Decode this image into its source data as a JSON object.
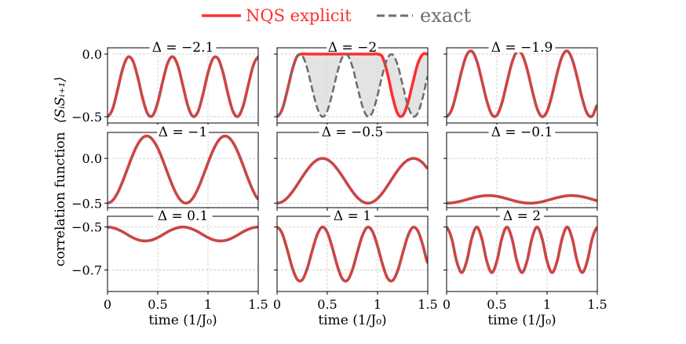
{
  "legend": {
    "nqs_label": "NQS explicit",
    "exact_label": "exact",
    "placement": "top-center"
  },
  "colors": {
    "nqs": "#ff2e2e",
    "exact": "#6e6e6e",
    "fill_between": "#d9d9d9",
    "grid": "#c8c8c8"
  },
  "chart_data": {
    "type": "line",
    "layout": "3x3 grid",
    "grid": true,
    "xlabel": "time (1/J₀)",
    "ylabel": "correlation function",
    "ylabel_expr": "⟨SᵢSᵢ₊₁⟩",
    "xlim": [
      0,
      1.5
    ],
    "xticks": [
      "0",
      "0.5",
      "1",
      "1.5"
    ],
    "rows": [
      {
        "ylim": [
          -0.55,
          0.05
        ],
        "yticks": [
          0.0,
          -0.5
        ],
        "ytick_labels": [
          "0.0",
          "−0.5"
        ]
      },
      {
        "ylim": [
          -0.55,
          0.29
        ],
        "yticks": [
          0.0,
          -0.5
        ],
        "ytick_labels": [
          "0.0",
          "−0.5"
        ]
      },
      {
        "ylim": [
          -0.8,
          -0.45
        ],
        "yticks": [
          -0.5,
          -0.7
        ],
        "ytick_labels": [
          "−0.5",
          "−0.7"
        ]
      }
    ],
    "x": [
      0,
      0.05,
      0.1,
      0.15,
      0.2,
      0.25,
      0.3,
      0.35,
      0.4,
      0.45,
      0.5,
      0.55,
      0.6,
      0.65,
      0.7,
      0.75,
      0.8,
      0.85,
      0.9,
      0.95,
      1.0,
      1.05,
      1.1,
      1.15,
      1.2,
      1.25,
      1.3,
      1.35,
      1.4,
      1.45,
      1.5
    ],
    "panels": [
      {
        "title": "Δ = −2.1",
        "row": 0,
        "col": 0,
        "exact": [
          -0.5,
          -0.439,
          -0.286,
          -0.12,
          -0.026,
          -0.051,
          -0.182,
          -0.354,
          -0.477,
          -0.49,
          -0.385,
          -0.216,
          -0.07,
          -0.021,
          -0.093,
          -0.251,
          -0.414,
          -0.497,
          -0.46,
          -0.321,
          -0.15,
          -0.036,
          -0.036,
          -0.15,
          -0.321,
          -0.46,
          -0.497,
          -0.414,
          -0.251,
          -0.093,
          -0.021
        ],
        "nqs": [
          -0.5,
          -0.439,
          -0.286,
          -0.12,
          -0.026,
          -0.051,
          -0.182,
          -0.354,
          -0.477,
          -0.49,
          -0.385,
          -0.216,
          -0.07,
          -0.021,
          -0.093,
          -0.251,
          -0.414,
          -0.497,
          -0.46,
          -0.321,
          -0.15,
          -0.036,
          -0.036,
          -0.15,
          -0.321,
          -0.46,
          -0.497,
          -0.414,
          -0.251,
          -0.093,
          -0.021
        ]
      },
      {
        "title": "Δ = −2",
        "row": 0,
        "col": 1,
        "fill_between": true,
        "exact": [
          -0.5,
          -0.443,
          -0.297,
          -0.13,
          -0.018,
          -0.012,
          -0.115,
          -0.28,
          -0.429,
          -0.5,
          -0.453,
          -0.314,
          -0.146,
          -0.025,
          -0.007,
          -0.101,
          -0.263,
          -0.417,
          -0.498,
          -0.463,
          -0.33,
          -0.161,
          -0.033,
          -0.004,
          -0.087,
          -0.246,
          -0.406,
          -0.495,
          -0.471,
          -0.347,
          -0.178
        ],
        "nqs": [
          -0.5,
          -0.443,
          -0.297,
          -0.13,
          -0.018,
          0,
          0,
          0,
          0,
          0,
          0,
          0,
          0,
          0,
          0,
          0,
          0,
          0,
          0,
          0,
          0,
          -0.025,
          -0.159,
          -0.341,
          -0.475,
          -0.491,
          -0.394,
          -0.233,
          -0.079,
          -0.002,
          0
        ]
      },
      {
        "title": "Δ = −1.9",
        "row": 0,
        "col": 2,
        "exact": [
          -0.5,
          -0.445,
          -0.304,
          -0.134,
          -0.008,
          0.023,
          -0.053,
          -0.208,
          -0.373,
          -0.482,
          -0.489,
          -0.391,
          -0.229,
          -0.07,
          0.019,
          -0.001,
          -0.116,
          -0.283,
          -0.432,
          -0.499,
          -0.457,
          -0.324,
          -0.154,
          -0.019,
          0.025,
          -0.042,
          -0.187,
          -0.355,
          -0.475,
          -0.494,
          -0.407
        ],
        "nqs": [
          -0.5,
          -0.445,
          -0.304,
          -0.134,
          -0.008,
          0.023,
          -0.053,
          -0.208,
          -0.373,
          -0.482,
          -0.489,
          -0.391,
          -0.229,
          -0.07,
          0.019,
          -0.001,
          -0.116,
          -0.283,
          -0.432,
          -0.499,
          -0.457,
          -0.324,
          -0.154,
          -0.019,
          0.025,
          -0.042,
          -0.187,
          -0.355,
          -0.475,
          -0.494,
          -0.407
        ]
      },
      {
        "title": "Δ = −1",
        "row": 1,
        "col": 0,
        "exact": [
          -0.5,
          -0.47,
          -0.385,
          -0.258,
          -0.11,
          0.036,
          0.156,
          0.231,
          0.249,
          0.207,
          0.114,
          -0.02,
          -0.17,
          -0.313,
          -0.425,
          -0.489,
          -0.495,
          -0.442,
          -0.338,
          -0.2,
          -0.05,
          0.088,
          0.192,
          0.245,
          0.239,
          0.175,
          0.063,
          -0.08,
          -0.23,
          -0.363,
          -0.457
        ],
        "nqs": [
          -0.5,
          -0.47,
          -0.385,
          -0.258,
          -0.11,
          0.036,
          0.156,
          0.231,
          0.249,
          0.207,
          0.114,
          -0.02,
          -0.17,
          -0.313,
          -0.425,
          -0.489,
          -0.495,
          -0.442,
          -0.338,
          -0.2,
          -0.05,
          0.088,
          0.192,
          0.245,
          0.239,
          0.175,
          0.063,
          -0.08,
          -0.23,
          -0.363,
          -0.457
        ]
      },
      {
        "title": "Δ = −0.5",
        "row": 1,
        "col": 1,
        "exact": [
          -0.5,
          -0.485,
          -0.442,
          -0.376,
          -0.295,
          -0.209,
          -0.128,
          -0.061,
          -0.016,
          0.0,
          -0.014,
          -0.055,
          -0.12,
          -0.2,
          -0.287,
          -0.369,
          -0.437,
          -0.482,
          -0.5,
          -0.488,
          -0.448,
          -0.384,
          -0.304,
          -0.218,
          -0.135,
          -0.067,
          -0.02,
          0.0,
          -0.011,
          -0.05,
          -0.112
        ],
        "nqs": [
          -0.5,
          -0.485,
          -0.442,
          -0.376,
          -0.295,
          -0.209,
          -0.128,
          -0.061,
          -0.016,
          0.0,
          -0.014,
          -0.055,
          -0.12,
          -0.2,
          -0.287,
          -0.369,
          -0.437,
          -0.482,
          -0.5,
          -0.488,
          -0.448,
          -0.384,
          -0.304,
          -0.218,
          -0.135,
          -0.067,
          -0.02,
          0.0,
          -0.011,
          -0.05,
          -0.112
        ]
      },
      {
        "title": "Δ = −0.1",
        "row": 1,
        "col": 2,
        "exact": [
          -0.5,
          -0.497,
          -0.488,
          -0.475,
          -0.46,
          -0.444,
          -0.43,
          -0.42,
          -0.415,
          -0.416,
          -0.423,
          -0.435,
          -0.45,
          -0.466,
          -0.481,
          -0.492,
          -0.499,
          -0.5,
          -0.494,
          -0.484,
          -0.469,
          -0.453,
          -0.438,
          -0.426,
          -0.417,
          -0.415,
          -0.419,
          -0.428,
          -0.441,
          -0.457,
          -0.472
        ],
        "nqs": [
          -0.5,
          -0.497,
          -0.488,
          -0.475,
          -0.46,
          -0.444,
          -0.43,
          -0.42,
          -0.415,
          -0.416,
          -0.423,
          -0.435,
          -0.45,
          -0.466,
          -0.481,
          -0.492,
          -0.499,
          -0.5,
          -0.494,
          -0.484,
          -0.469,
          -0.453,
          -0.438,
          -0.426,
          -0.417,
          -0.415,
          -0.419,
          -0.428,
          -0.441,
          -0.457,
          -0.472
        ]
      },
      {
        "title": "Δ = 0.1",
        "row": 2,
        "col": 0,
        "exact": [
          -0.5,
          -0.503,
          -0.511,
          -0.522,
          -0.536,
          -0.549,
          -0.559,
          -0.564,
          -0.564,
          -0.559,
          -0.549,
          -0.536,
          -0.522,
          -0.511,
          -0.503,
          -0.5,
          -0.503,
          -0.511,
          -0.522,
          -0.536,
          -0.549,
          -0.559,
          -0.564,
          -0.564,
          -0.559,
          -0.549,
          -0.536,
          -0.522,
          -0.511,
          -0.503,
          -0.5
        ],
        "nqs": [
          -0.5,
          -0.503,
          -0.511,
          -0.522,
          -0.536,
          -0.549,
          -0.559,
          -0.564,
          -0.564,
          -0.559,
          -0.549,
          -0.536,
          -0.522,
          -0.511,
          -0.503,
          -0.5,
          -0.503,
          -0.511,
          -0.522,
          -0.536,
          -0.549,
          -0.559,
          -0.564,
          -0.564,
          -0.559,
          -0.549,
          -0.536,
          -0.522,
          -0.511,
          -0.503,
          -0.5
        ]
      },
      {
        "title": "Δ = 1",
        "row": 2,
        "col": 1,
        "exact": [
          -0.5,
          -0.529,
          -0.603,
          -0.687,
          -0.743,
          -0.746,
          -0.693,
          -0.61,
          -0.535,
          -0.5,
          -0.525,
          -0.596,
          -0.681,
          -0.741,
          -0.748,
          -0.699,
          -0.616,
          -0.539,
          -0.501,
          -0.521,
          -0.589,
          -0.674,
          -0.738,
          -0.749,
          -0.704,
          -0.623,
          -0.544,
          -0.502,
          -0.517,
          -0.583,
          -0.668
        ],
        "nqs": [
          -0.5,
          -0.529,
          -0.603,
          -0.687,
          -0.743,
          -0.746,
          -0.693,
          -0.61,
          -0.535,
          -0.5,
          -0.525,
          -0.596,
          -0.681,
          -0.741,
          -0.748,
          -0.699,
          -0.616,
          -0.539,
          -0.501,
          -0.521,
          -0.589,
          -0.674,
          -0.738,
          -0.749,
          -0.704,
          -0.623,
          -0.544,
          -0.502,
          -0.517,
          -0.583,
          -0.668
        ]
      },
      {
        "title": "Δ = 2",
        "row": 2,
        "col": 2,
        "exact": [
          -0.5,
          -0.553,
          -0.659,
          -0.712,
          -0.659,
          -0.553,
          -0.5,
          -0.553,
          -0.659,
          -0.712,
          -0.659,
          -0.553,
          -0.5,
          -0.553,
          -0.659,
          -0.712,
          -0.659,
          -0.553,
          -0.5,
          -0.553,
          -0.659,
          -0.712,
          -0.659,
          -0.553,
          -0.5,
          -0.553,
          -0.659,
          -0.712,
          -0.659,
          -0.553,
          -0.5
        ],
        "nqs": [
          -0.5,
          -0.553,
          -0.659,
          -0.712,
          -0.659,
          -0.553,
          -0.5,
          -0.553,
          -0.659,
          -0.712,
          -0.659,
          -0.553,
          -0.5,
          -0.553,
          -0.659,
          -0.712,
          -0.659,
          -0.553,
          -0.5,
          -0.553,
          -0.659,
          -0.712,
          -0.659,
          -0.553,
          -0.5,
          -0.553,
          -0.659,
          -0.712,
          -0.659,
          -0.553,
          -0.5
        ]
      }
    ]
  }
}
